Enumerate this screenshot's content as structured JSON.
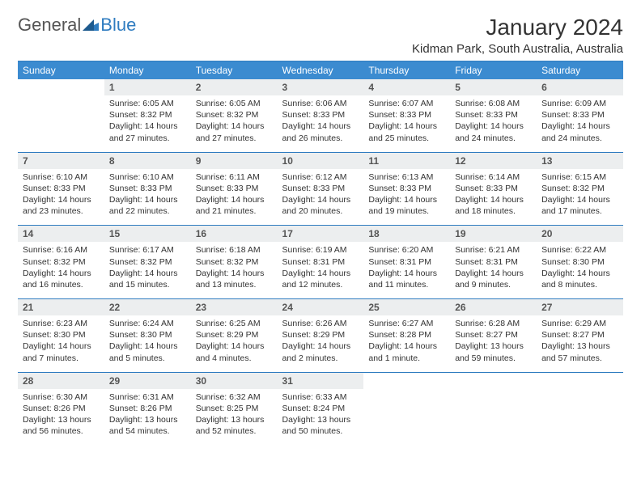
{
  "logo": {
    "general": "General",
    "blue": "Blue"
  },
  "title": "January 2024",
  "location": "Kidman Park, South Australia, Australia",
  "colors": {
    "header_bg": "#3b8bd0",
    "header_text": "#ffffff",
    "divider": "#2f7cc0",
    "daynum_bg": "#eceeef",
    "body_text": "#333333",
    "logo_blue": "#2f7cc0",
    "logo_gray": "#555555"
  },
  "day_names": [
    "Sunday",
    "Monday",
    "Tuesday",
    "Wednesday",
    "Thursday",
    "Friday",
    "Saturday"
  ],
  "weeks": [
    [
      null,
      {
        "n": "1",
        "sr": "Sunrise: 6:05 AM",
        "ss": "Sunset: 8:32 PM",
        "dl": "Daylight: 14 hours and 27 minutes."
      },
      {
        "n": "2",
        "sr": "Sunrise: 6:05 AM",
        "ss": "Sunset: 8:32 PM",
        "dl": "Daylight: 14 hours and 27 minutes."
      },
      {
        "n": "3",
        "sr": "Sunrise: 6:06 AM",
        "ss": "Sunset: 8:33 PM",
        "dl": "Daylight: 14 hours and 26 minutes."
      },
      {
        "n": "4",
        "sr": "Sunrise: 6:07 AM",
        "ss": "Sunset: 8:33 PM",
        "dl": "Daylight: 14 hours and 25 minutes."
      },
      {
        "n": "5",
        "sr": "Sunrise: 6:08 AM",
        "ss": "Sunset: 8:33 PM",
        "dl": "Daylight: 14 hours and 24 minutes."
      },
      {
        "n": "6",
        "sr": "Sunrise: 6:09 AM",
        "ss": "Sunset: 8:33 PM",
        "dl": "Daylight: 14 hours and 24 minutes."
      }
    ],
    [
      {
        "n": "7",
        "sr": "Sunrise: 6:10 AM",
        "ss": "Sunset: 8:33 PM",
        "dl": "Daylight: 14 hours and 23 minutes."
      },
      {
        "n": "8",
        "sr": "Sunrise: 6:10 AM",
        "ss": "Sunset: 8:33 PM",
        "dl": "Daylight: 14 hours and 22 minutes."
      },
      {
        "n": "9",
        "sr": "Sunrise: 6:11 AM",
        "ss": "Sunset: 8:33 PM",
        "dl": "Daylight: 14 hours and 21 minutes."
      },
      {
        "n": "10",
        "sr": "Sunrise: 6:12 AM",
        "ss": "Sunset: 8:33 PM",
        "dl": "Daylight: 14 hours and 20 minutes."
      },
      {
        "n": "11",
        "sr": "Sunrise: 6:13 AM",
        "ss": "Sunset: 8:33 PM",
        "dl": "Daylight: 14 hours and 19 minutes."
      },
      {
        "n": "12",
        "sr": "Sunrise: 6:14 AM",
        "ss": "Sunset: 8:33 PM",
        "dl": "Daylight: 14 hours and 18 minutes."
      },
      {
        "n": "13",
        "sr": "Sunrise: 6:15 AM",
        "ss": "Sunset: 8:32 PM",
        "dl": "Daylight: 14 hours and 17 minutes."
      }
    ],
    [
      {
        "n": "14",
        "sr": "Sunrise: 6:16 AM",
        "ss": "Sunset: 8:32 PM",
        "dl": "Daylight: 14 hours and 16 minutes."
      },
      {
        "n": "15",
        "sr": "Sunrise: 6:17 AM",
        "ss": "Sunset: 8:32 PM",
        "dl": "Daylight: 14 hours and 15 minutes."
      },
      {
        "n": "16",
        "sr": "Sunrise: 6:18 AM",
        "ss": "Sunset: 8:32 PM",
        "dl": "Daylight: 14 hours and 13 minutes."
      },
      {
        "n": "17",
        "sr": "Sunrise: 6:19 AM",
        "ss": "Sunset: 8:31 PM",
        "dl": "Daylight: 14 hours and 12 minutes."
      },
      {
        "n": "18",
        "sr": "Sunrise: 6:20 AM",
        "ss": "Sunset: 8:31 PM",
        "dl": "Daylight: 14 hours and 11 minutes."
      },
      {
        "n": "19",
        "sr": "Sunrise: 6:21 AM",
        "ss": "Sunset: 8:31 PM",
        "dl": "Daylight: 14 hours and 9 minutes."
      },
      {
        "n": "20",
        "sr": "Sunrise: 6:22 AM",
        "ss": "Sunset: 8:30 PM",
        "dl": "Daylight: 14 hours and 8 minutes."
      }
    ],
    [
      {
        "n": "21",
        "sr": "Sunrise: 6:23 AM",
        "ss": "Sunset: 8:30 PM",
        "dl": "Daylight: 14 hours and 7 minutes."
      },
      {
        "n": "22",
        "sr": "Sunrise: 6:24 AM",
        "ss": "Sunset: 8:30 PM",
        "dl": "Daylight: 14 hours and 5 minutes."
      },
      {
        "n": "23",
        "sr": "Sunrise: 6:25 AM",
        "ss": "Sunset: 8:29 PM",
        "dl": "Daylight: 14 hours and 4 minutes."
      },
      {
        "n": "24",
        "sr": "Sunrise: 6:26 AM",
        "ss": "Sunset: 8:29 PM",
        "dl": "Daylight: 14 hours and 2 minutes."
      },
      {
        "n": "25",
        "sr": "Sunrise: 6:27 AM",
        "ss": "Sunset: 8:28 PM",
        "dl": "Daylight: 14 hours and 1 minute."
      },
      {
        "n": "26",
        "sr": "Sunrise: 6:28 AM",
        "ss": "Sunset: 8:27 PM",
        "dl": "Daylight: 13 hours and 59 minutes."
      },
      {
        "n": "27",
        "sr": "Sunrise: 6:29 AM",
        "ss": "Sunset: 8:27 PM",
        "dl": "Daylight: 13 hours and 57 minutes."
      }
    ],
    [
      {
        "n": "28",
        "sr": "Sunrise: 6:30 AM",
        "ss": "Sunset: 8:26 PM",
        "dl": "Daylight: 13 hours and 56 minutes."
      },
      {
        "n": "29",
        "sr": "Sunrise: 6:31 AM",
        "ss": "Sunset: 8:26 PM",
        "dl": "Daylight: 13 hours and 54 minutes."
      },
      {
        "n": "30",
        "sr": "Sunrise: 6:32 AM",
        "ss": "Sunset: 8:25 PM",
        "dl": "Daylight: 13 hours and 52 minutes."
      },
      {
        "n": "31",
        "sr": "Sunrise: 6:33 AM",
        "ss": "Sunset: 8:24 PM",
        "dl": "Daylight: 13 hours and 50 minutes."
      },
      null,
      null,
      null
    ]
  ]
}
